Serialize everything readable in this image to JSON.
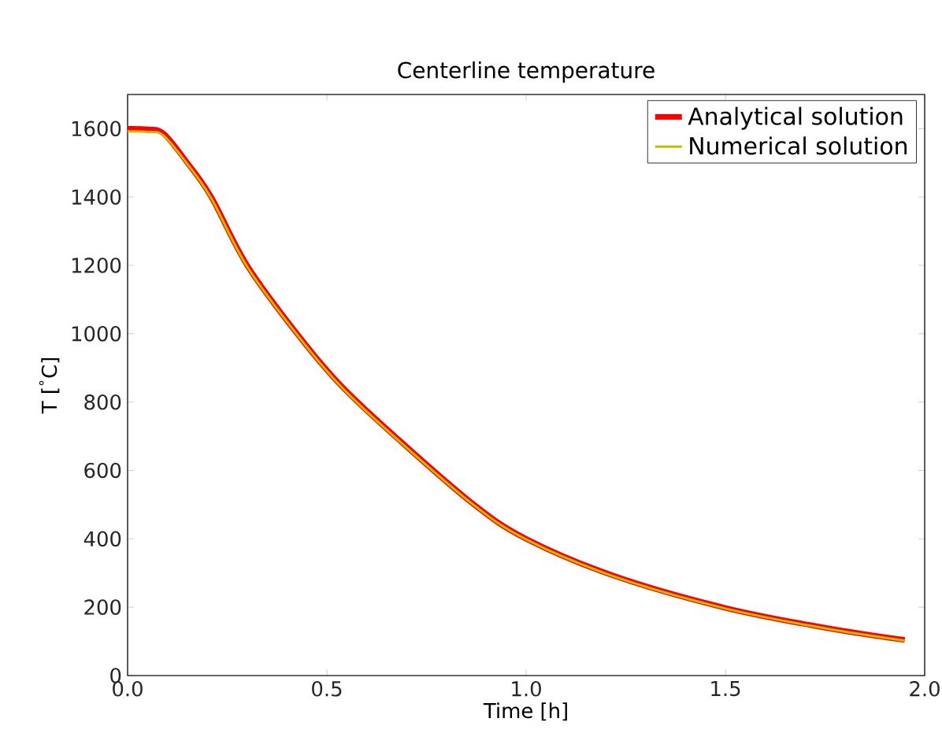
{
  "chart_data": {
    "type": "line",
    "title": "Centerline temperature",
    "xlabel": "Time [h]",
    "ylabel": "T [$^{°}$C]",
    "x": [
      0,
      0.05,
      0.09,
      0.15,
      0.21,
      0.3,
      0.43,
      0.535,
      0.667,
      0.864,
      1.0,
      1.22,
      1.5,
      1.75,
      1.95
    ],
    "series": [
      {
        "name": "Analytical solution",
        "color": "#ff0000",
        "values": [
          1600,
          1598,
          1586,
          1500,
          1400,
          1200,
          993,
          849,
          704,
          505,
          400,
          292,
          198,
          140,
          104
        ]
      },
      {
        "name": "Numerical solution",
        "color": "#bfbf00",
        "values": [
          1592,
          1590,
          1580,
          1496,
          1396,
          1196,
          990,
          846,
          701,
          503,
          398,
          290,
          196,
          138,
          102
        ]
      }
    ],
    "xlim": [
      0,
      2.0
    ],
    "ylim": [
      0,
      1700
    ],
    "xticks": [
      {
        "value": 0,
        "label": "0.0"
      },
      0.5,
      {
        "value": 1,
        "label": "1.0"
      },
      1.5,
      {
        "value": 2,
        "label": "2.0"
      }
    ],
    "yticks": [
      0,
      200,
      400,
      600,
      800,
      1000,
      1200,
      1400,
      1600
    ],
    "legend": "top right",
    "grid": false
  }
}
